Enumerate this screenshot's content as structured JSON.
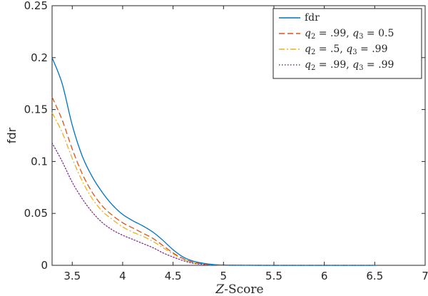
{
  "chart_data": {
    "type": "line",
    "title": "",
    "xlabel_var": "Z",
    "xlabel_rest": "-Score",
    "ylabel": "fdr",
    "xlim": [
      3.3,
      7
    ],
    "ylim": [
      0,
      0.25
    ],
    "xticks": [
      3.5,
      4,
      4.5,
      5,
      5.5,
      6,
      6.5,
      7
    ],
    "xtick_labels": [
      "3.5",
      "4",
      "4.5",
      "5",
      "5.5",
      "6",
      "6.5",
      "7"
    ],
    "yticks": [
      0,
      0.05,
      0.1,
      0.15,
      0.2,
      0.25
    ],
    "ytick_labels": [
      "0",
      "0.05",
      "0.1",
      "0.15",
      "0.2",
      "0.25"
    ],
    "grid": false,
    "legend_position": "top-right",
    "series": [
      {
        "name": "fdr",
        "legend": [
          {
            "t": "fdr",
            "it": false
          }
        ],
        "color": "#0072BD",
        "dash": "solid",
        "x": [
          3.3,
          3.4,
          3.5,
          3.6,
          3.7,
          3.8,
          3.9,
          4.0,
          4.1,
          4.2,
          4.3,
          4.4,
          4.5,
          4.6,
          4.7,
          4.8,
          4.9,
          5.0,
          5.2,
          5.5,
          6.0,
          6.5
        ],
        "y": [
          0.2,
          0.175,
          0.135,
          0.105,
          0.085,
          0.07,
          0.058,
          0.049,
          0.043,
          0.038,
          0.032,
          0.024,
          0.015,
          0.008,
          0.004,
          0.002,
          0.0008,
          0.0003,
          0.0001,
          0.0,
          0.0,
          0.0
        ]
      },
      {
        "name": "q2 = .99, q3 = 0.5",
        "legend": [
          {
            "t": "q",
            "it": true
          },
          {
            "t": "2",
            "sub": true
          },
          {
            "t": " = .99, ",
            "it": false
          },
          {
            "t": "q",
            "it": true
          },
          {
            "t": "3",
            "sub": true
          },
          {
            "t": " = 0.5",
            "it": false
          }
        ],
        "color": "#D95319",
        "dash": "dashed",
        "x": [
          3.3,
          3.4,
          3.5,
          3.6,
          3.7,
          3.8,
          3.9,
          4.0,
          4.1,
          4.2,
          4.3,
          4.4,
          4.5,
          4.6,
          4.7,
          4.8,
          4.9,
          5.0,
          5.2,
          5.5,
          6.0,
          6.5
        ],
        "y": [
          0.162,
          0.14,
          0.112,
          0.088,
          0.07,
          0.057,
          0.048,
          0.041,
          0.036,
          0.031,
          0.026,
          0.019,
          0.012,
          0.0065,
          0.003,
          0.0015,
          0.0006,
          0.0002,
          0.0001,
          0.0,
          0.0,
          0.0
        ]
      },
      {
        "name": "q2 = .5, q3 = .99",
        "legend": [
          {
            "t": "q",
            "it": true
          },
          {
            "t": "2",
            "sub": true
          },
          {
            "t": " = .5, ",
            "it": false
          },
          {
            "t": "q",
            "it": true
          },
          {
            "t": "3",
            "sub": true
          },
          {
            "t": " = .99",
            "it": false
          }
        ],
        "color": "#EDB120",
        "dash": "dashdot",
        "x": [
          3.3,
          3.4,
          3.5,
          3.6,
          3.7,
          3.8,
          3.9,
          4.0,
          4.1,
          4.2,
          4.3,
          4.4,
          4.5,
          4.6,
          4.7,
          4.8,
          4.9,
          5.0,
          5.2,
          5.5,
          6.0,
          6.5
        ],
        "y": [
          0.147,
          0.128,
          0.103,
          0.081,
          0.064,
          0.052,
          0.044,
          0.037,
          0.032,
          0.028,
          0.023,
          0.017,
          0.011,
          0.006,
          0.0028,
          0.0013,
          0.0005,
          0.0002,
          0.0001,
          0.0,
          0.0,
          0.0
        ]
      },
      {
        "name": "q2 = .99, q3 = .99",
        "legend": [
          {
            "t": "q",
            "it": true
          },
          {
            "t": "2",
            "sub": true
          },
          {
            "t": " = .99, ",
            "it": false
          },
          {
            "t": "q",
            "it": true
          },
          {
            "t": "3",
            "sub": true
          },
          {
            "t": " = .99",
            "it": false
          }
        ],
        "color": "#7E2F8E",
        "dash": "dotted",
        "x": [
          3.3,
          3.4,
          3.5,
          3.6,
          3.7,
          3.8,
          3.9,
          4.0,
          4.1,
          4.2,
          4.3,
          4.4,
          4.5,
          4.6,
          4.7,
          4.8,
          4.9,
          5.0,
          5.2,
          5.5,
          6.0,
          6.5
        ],
        "y": [
          0.118,
          0.1,
          0.08,
          0.064,
          0.051,
          0.041,
          0.034,
          0.029,
          0.025,
          0.021,
          0.017,
          0.012,
          0.008,
          0.0045,
          0.002,
          0.0009,
          0.0004,
          0.0001,
          0.0,
          0.0,
          0.0,
          0.0
        ]
      }
    ]
  }
}
